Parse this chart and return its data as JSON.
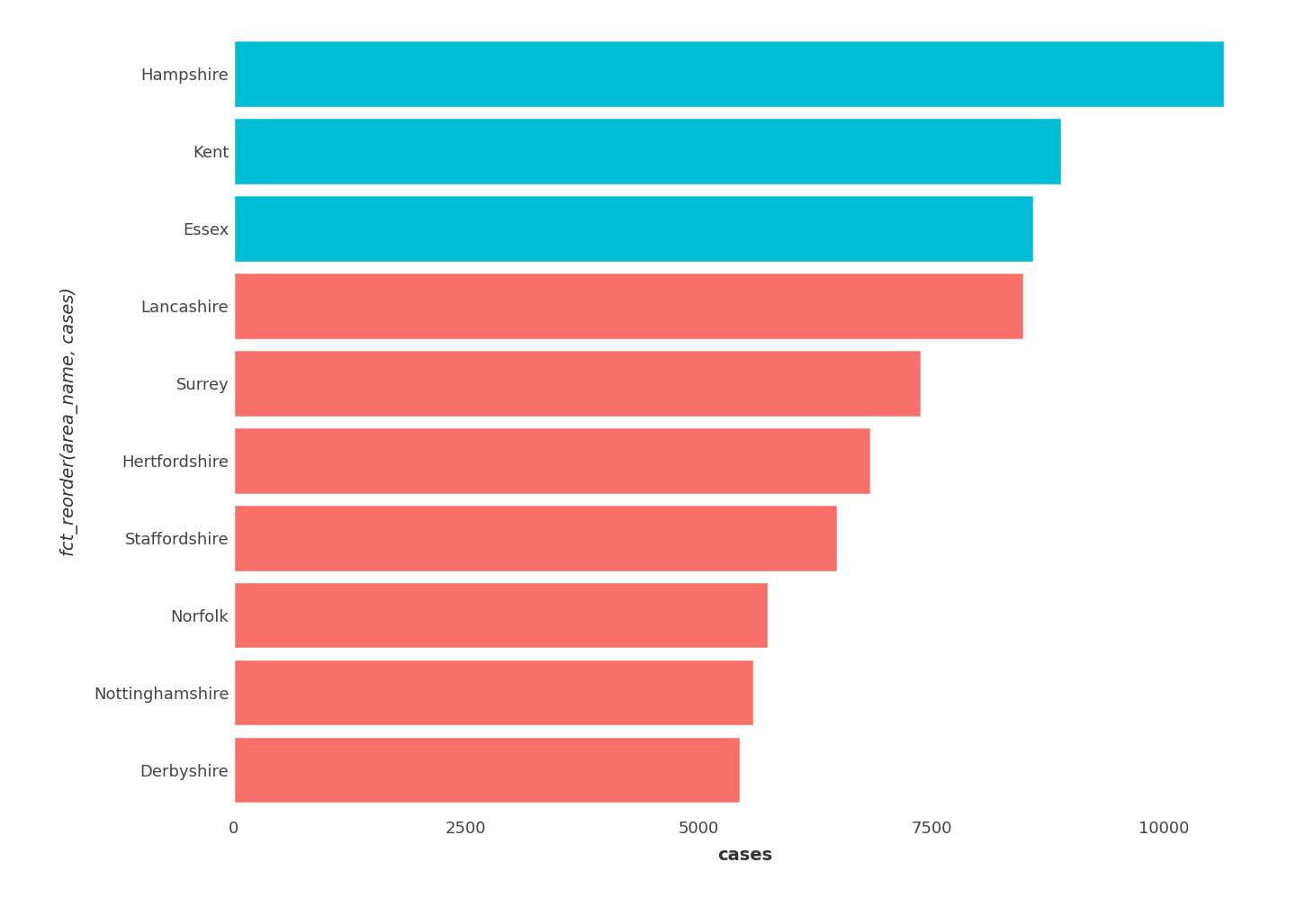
{
  "categories": [
    "Derbyshire",
    "Nottinghamshire",
    "Norfolk",
    "Staffordshire",
    "Hertfordshire",
    "Surrey",
    "Lancashire",
    "Essex",
    "Kent",
    "Hampshire"
  ],
  "values": [
    5450,
    5600,
    5750,
    6500,
    6850,
    7400,
    8500,
    8600,
    8900,
    10650
  ],
  "colors": [
    "#F97068",
    "#F97068",
    "#F97068",
    "#F97068",
    "#F97068",
    "#F97068",
    "#F97068",
    "#00BCD4",
    "#00BCD4",
    "#00BCD4"
  ],
  "xlabel": "cases",
  "ylabel": "fct_reorder(area_name, cases)",
  "xlim": [
    0,
    11000
  ],
  "xticks": [
    0,
    2500,
    5000,
    7500,
    10000
  ],
  "background_color": "#FFFFFF",
  "xlabel_fontsize": 14,
  "ylabel_fontsize": 14,
  "tick_fontsize": 13,
  "bar_height": 0.88
}
